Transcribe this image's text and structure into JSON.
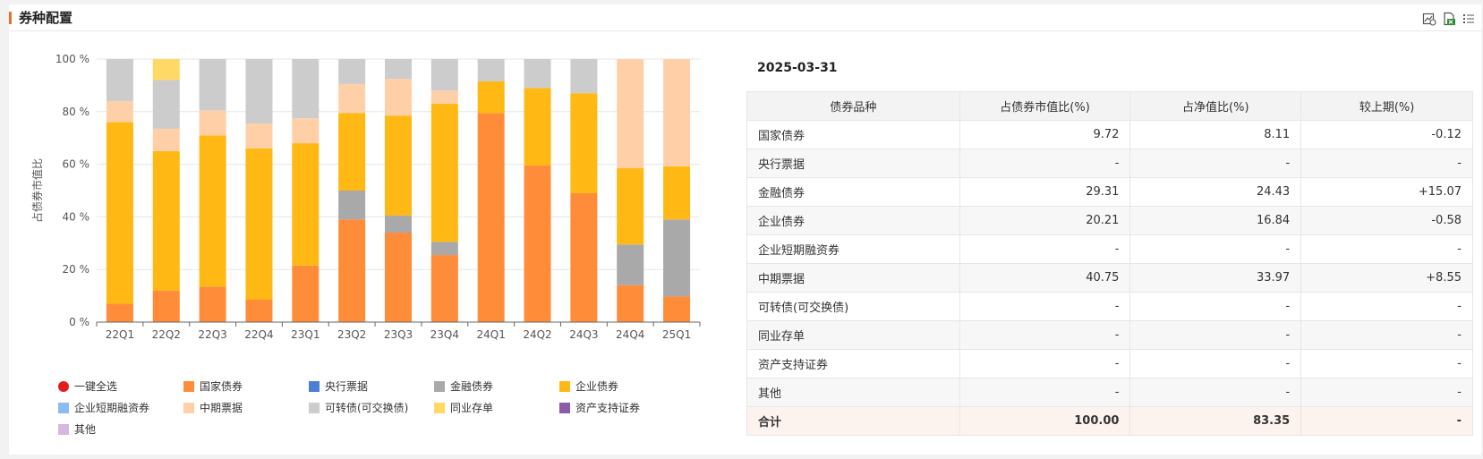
{
  "header": {
    "title": "券种配置"
  },
  "icons": [
    "chart-export-icon",
    "excel-export-icon",
    "list-icon"
  ],
  "colors": {
    "国家债券": "#ff8c38",
    "央行票据": "#4a7fd4",
    "金融债券": "#a9a9a9",
    "企业债券": "#ffb814",
    "企业短期融资券": "#8cbcf2",
    "中期票据": "#ffd0a8",
    "可转债(可交换债)": "#cccccc",
    "同业存单": "#ffd966",
    "资产支持证券": "#8e5aa8",
    "其他": "#d4b8e0",
    "select_all": "#e31b1b"
  },
  "chart_data": {
    "type": "bar",
    "stacked": true,
    "categories": [
      "22Q1",
      "22Q2",
      "22Q3",
      "22Q4",
      "23Q1",
      "23Q2",
      "23Q3",
      "23Q4",
      "24Q1",
      "24Q2",
      "24Q3",
      "24Q4",
      "25Q1"
    ],
    "ylabel": "占债券市值比",
    "ylim": [
      0,
      100
    ],
    "yticks": [
      "0 %",
      "20 %",
      "40 %",
      "60 %",
      "80 %",
      "100 %"
    ],
    "series": [
      {
        "name": "国家债券",
        "values": [
          7,
          12,
          13.5,
          8.5,
          21.5,
          39,
          34,
          25.5,
          79.5,
          59.5,
          49,
          14,
          9.72
        ]
      },
      {
        "name": "央行票据",
        "values": [
          0,
          0,
          0,
          0,
          0,
          0,
          0,
          0,
          0,
          0,
          0,
          0,
          0
        ]
      },
      {
        "name": "金融债券",
        "values": [
          0,
          0,
          0,
          0,
          0,
          11,
          6.5,
          5,
          0,
          0,
          0,
          15.5,
          29.31
        ]
      },
      {
        "name": "企业债券",
        "values": [
          69,
          53,
          57.5,
          57.5,
          46.5,
          29.5,
          38,
          52.5,
          12,
          29.5,
          38,
          29,
          20.21
        ]
      },
      {
        "name": "企业短期融资券",
        "values": [
          0,
          0,
          0,
          0,
          0,
          0,
          0,
          0,
          0,
          0,
          0,
          0,
          0
        ]
      },
      {
        "name": "中期票据",
        "values": [
          8,
          8.5,
          9.5,
          9.5,
          9.5,
          11,
          14,
          5,
          0,
          0,
          0,
          41.5,
          40.75
        ]
      },
      {
        "name": "可转债(可交换债)",
        "values": [
          16,
          18.5,
          19.5,
          24.5,
          22.5,
          9.5,
          7.5,
          12,
          8.5,
          11,
          13,
          0,
          0
        ]
      },
      {
        "name": "同业存单",
        "values": [
          0,
          8,
          0,
          0,
          0,
          0,
          0,
          0,
          0,
          0,
          0,
          0,
          0
        ]
      },
      {
        "name": "资产支持证券",
        "values": [
          0,
          0,
          0,
          0,
          0,
          0,
          0,
          0,
          0,
          0,
          0,
          0,
          0
        ]
      },
      {
        "name": "其他",
        "values": [
          0,
          0,
          0,
          0,
          0,
          0,
          0,
          0,
          0,
          0,
          0,
          0,
          0
        ]
      }
    ],
    "legend_position": "bottom",
    "grid": true
  },
  "legend": {
    "select_all": "一键全选",
    "items": [
      "国家债券",
      "央行票据",
      "金融债券",
      "企业债券",
      "企业短期融资券",
      "中期票据",
      "可转债(可交换债)",
      "同业存单",
      "资产支持证券",
      "其他"
    ]
  },
  "table": {
    "date": "2025-03-31",
    "columns": [
      "债券品种",
      "占债券市值比(%)",
      "占净值比(%)",
      "较上期(%)"
    ],
    "rows": [
      {
        "name": "国家债券",
        "mv": "9.72",
        "nav": "8.11",
        "chg": "-0.12"
      },
      {
        "name": "央行票据",
        "mv": "-",
        "nav": "-",
        "chg": "-"
      },
      {
        "name": "金融债券",
        "mv": "29.31",
        "nav": "24.43",
        "chg": "+15.07"
      },
      {
        "name": "企业债券",
        "mv": "20.21",
        "nav": "16.84",
        "chg": "-0.58"
      },
      {
        "name": "企业短期融资券",
        "mv": "-",
        "nav": "-",
        "chg": "-"
      },
      {
        "name": "中期票据",
        "mv": "40.75",
        "nav": "33.97",
        "chg": "+8.55"
      },
      {
        "name": "可转债(可交换债)",
        "mv": "-",
        "nav": "-",
        "chg": "-"
      },
      {
        "name": "同业存单",
        "mv": "-",
        "nav": "-",
        "chg": "-"
      },
      {
        "name": "资产支持证券",
        "mv": "-",
        "nav": "-",
        "chg": "-"
      },
      {
        "name": "其他",
        "mv": "-",
        "nav": "-",
        "chg": "-"
      }
    ],
    "total": {
      "name": "合计",
      "mv": "100.00",
      "nav": "83.35",
      "chg": "-"
    }
  }
}
